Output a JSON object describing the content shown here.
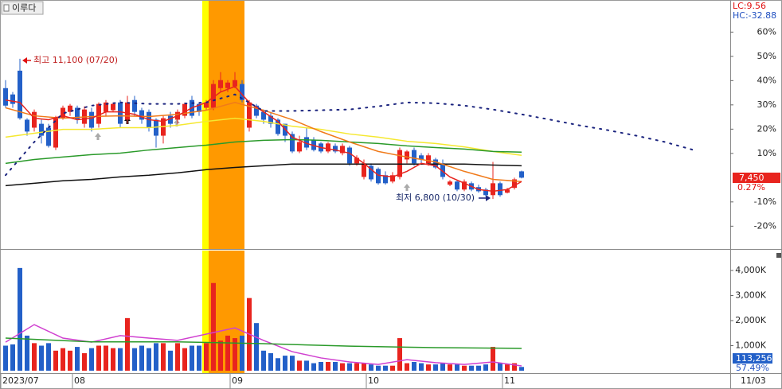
{
  "chart_data": {
    "type": "candlestick",
    "stock_name": "이루다",
    "lc_label": "LC:9.56",
    "hc_label": "HC:-32.88",
    "last_label": "7,450",
    "change_label": "0.27%",
    "high_note": "최고 11,100 (07/20)",
    "low_note": "최저 6,800 (10/30)",
    "current_date": "11/03",
    "up_color": "#e8241e",
    "down_color": "#2360c8",
    "categories": [
      "2023/07",
      null,
      null,
      null,
      null,
      null,
      null,
      null,
      null,
      null,
      "08",
      null,
      null,
      null,
      null,
      null,
      null,
      null,
      null,
      null,
      null,
      null,
      null,
      null,
      null,
      null,
      null,
      null,
      null,
      null,
      null,
      null,
      "09",
      null,
      null,
      null,
      null,
      null,
      null,
      null,
      null,
      null,
      null,
      null,
      null,
      null,
      null,
      null,
      null,
      null,
      null,
      "10",
      null,
      null,
      null,
      null,
      null,
      null,
      null,
      null,
      null,
      null,
      null,
      null,
      null,
      null,
      null,
      null,
      null,
      null,
      "11",
      null,
      null
    ],
    "open": [
      36.9,
      34.3,
      44.1,
      23.9,
      20.6,
      22.2,
      20.6,
      12.4,
      24.5,
      27.1,
      28.8,
      22.2,
      27.1,
      22.2,
      27.1,
      27.8,
      31.0,
      23.9,
      32.0,
      27.8,
      27.1,
      23.9,
      17.3,
      25.5,
      23.9,
      25.5,
      32.0,
      30.4,
      28.8,
      28.8,
      36.9,
      36.9,
      37.6,
      38.6,
      20.6,
      29.7,
      27.1,
      25.5,
      23.9,
      22.2,
      18.0,
      10.8,
      16.7,
      15.7,
      14.1,
      10.8,
      13.1,
      10.1,
      12.4,
      5.9,
      0.3,
      4.9,
      3.6,
      1.0,
      -1.6,
      0.3,
      7.5,
      11.4,
      9.2,
      5.9,
      7.5,
      5.9,
      -2.9,
      -1.6,
      -4.9,
      -2.3,
      -3.9,
      -4.9,
      -7.2,
      -2.3,
      -6.2,
      -4.2,
      2.6
    ],
    "high": [
      40.2,
      35.3,
      49.0,
      24.5,
      28.1,
      23.9,
      22.2,
      25.5,
      29.7,
      30.4,
      29.7,
      29.4,
      28.8,
      31.0,
      32.0,
      31.0,
      32.0,
      33.7,
      33.7,
      28.8,
      28.1,
      24.5,
      25.5,
      27.1,
      28.1,
      31.0,
      33.7,
      31.0,
      32.0,
      40.2,
      43.5,
      40.2,
      43.5,
      40.2,
      32.0,
      30.4,
      28.1,
      27.1,
      24.5,
      22.2,
      19.0,
      17.3,
      20.6,
      16.7,
      14.7,
      14.7,
      14.1,
      14.1,
      13.1,
      9.2,
      7.5,
      5.9,
      4.2,
      2.6,
      2.3,
      12.4,
      11.4,
      12.4,
      10.1,
      10.1,
      8.2,
      7.5,
      -1.0,
      -1.0,
      -0.7,
      -1.6,
      -2.9,
      -4.2,
      6.5,
      -1.6,
      -4.2,
      0.0,
      2.9
    ],
    "low": [
      28.8,
      28.8,
      23.9,
      17.3,
      19.0,
      14.1,
      12.4,
      11.4,
      23.9,
      25.5,
      22.2,
      20.6,
      19.0,
      20.6,
      25.5,
      27.1,
      20.6,
      22.2,
      25.5,
      22.2,
      19.0,
      12.4,
      14.1,
      20.6,
      22.2,
      24.5,
      24.5,
      25.5,
      27.8,
      27.8,
      35.3,
      35.3,
      36.9,
      31.0,
      19.0,
      24.5,
      22.2,
      20.6,
      17.3,
      14.7,
      10.1,
      10.1,
      11.4,
      10.8,
      10.1,
      10.1,
      10.1,
      9.2,
      4.9,
      4.9,
      -0.7,
      -1.6,
      -2.9,
      -2.9,
      -2.3,
      -0.7,
      5.9,
      4.9,
      5.9,
      4.9,
      3.6,
      -0.7,
      -3.5,
      -5.6,
      -5.6,
      -5.6,
      -6.2,
      -7.9,
      -8.8,
      -7.9,
      -6.5,
      -4.9,
      -0.3
    ],
    "close": [
      29.7,
      30.4,
      24.5,
      19.0,
      27.1,
      17.3,
      13.1,
      24.5,
      28.8,
      29.7,
      23.9,
      28.1,
      20.6,
      30.4,
      31.0,
      30.4,
      22.2,
      31.0,
      27.1,
      23.9,
      20.6,
      17.3,
      24.5,
      22.2,
      27.1,
      30.4,
      25.5,
      27.1,
      31.0,
      38.6,
      40.2,
      39.2,
      40.2,
      32.0,
      31.0,
      25.5,
      23.9,
      22.2,
      18.0,
      17.3,
      10.8,
      14.7,
      12.4,
      11.4,
      10.8,
      14.1,
      10.8,
      13.1,
      5.9,
      8.2,
      5.9,
      -0.7,
      -2.3,
      -2.3,
      1.0,
      11.4,
      10.8,
      5.9,
      7.5,
      9.2,
      4.2,
      0.3,
      -1.6,
      -4.9,
      -1.6,
      -4.9,
      -5.6,
      -7.2,
      -2.3,
      -7.2,
      -4.9,
      -0.7,
      0.0
    ],
    "ylim": [
      -29.4,
      72.9
    ],
    "yticks": [
      {
        "value": 60,
        "label": "60%"
      },
      {
        "value": 50,
        "label": "50%"
      },
      {
        "value": 40,
        "label": "40%"
      },
      {
        "value": 30,
        "label": "30%"
      },
      {
        "value": 20,
        "label": "20%"
      },
      {
        "value": 10,
        "label": "10%"
      },
      {
        "value": -10,
        "label": "-10%"
      },
      {
        "value": -20,
        "label": "-20%"
      }
    ],
    "lines": [
      {
        "color": "#f5e830",
        "dotted": false,
        "x": [
          0,
          4,
          8,
          12,
          16,
          20,
          24,
          28,
          32,
          36,
          40,
          44,
          48,
          52,
          56,
          60,
          64,
          68,
          72
        ],
        "values": [
          16.7,
          18.3,
          19.9,
          19.9,
          20.6,
          20.6,
          21.6,
          23.2,
          24.5,
          23.2,
          21.2,
          19.9,
          18.0,
          16.7,
          15.0,
          14.1,
          12.7,
          10.8,
          9.2
        ]
      },
      {
        "color": "#2a9a2a",
        "dotted": false,
        "x": [
          0,
          4,
          8,
          12,
          16,
          20,
          24,
          28,
          32,
          36,
          40,
          44,
          48,
          52,
          56,
          60,
          64,
          68,
          72
        ],
        "values": [
          5.9,
          7.5,
          8.5,
          9.5,
          10.1,
          11.4,
          12.4,
          13.4,
          14.7,
          15.4,
          15.7,
          15.4,
          14.7,
          14.1,
          13.1,
          12.4,
          11.8,
          10.8,
          10.5
        ]
      },
      {
        "color": "#111111",
        "dotted": false,
        "x": [
          0,
          4,
          8,
          12,
          16,
          20,
          24,
          28,
          32,
          36,
          40,
          44,
          48,
          52,
          56,
          60,
          64,
          68,
          72
        ],
        "values": [
          -3.3,
          -2.3,
          -1.3,
          -0.7,
          0.3,
          1.0,
          2.0,
          3.3,
          4.2,
          4.9,
          5.6,
          5.6,
          5.6,
          5.6,
          5.6,
          5.6,
          5.6,
          5.2,
          4.9
        ]
      },
      {
        "color": "#f07a1a",
        "dotted": false,
        "x": [
          0,
          4,
          8,
          12,
          16,
          20,
          24,
          28,
          32,
          36,
          40,
          44,
          48,
          52,
          56,
          60,
          64,
          68,
          72
        ],
        "values": [
          28.8,
          25.5,
          24.5,
          25.2,
          25.5,
          25.2,
          26.1,
          27.8,
          31.0,
          27.8,
          23.9,
          19.0,
          14.7,
          10.8,
          8.5,
          6.5,
          2.6,
          -0.7,
          -1.6
        ]
      },
      {
        "color": "#e8241e",
        "dotted": false,
        "x": [
          0,
          2,
          4,
          6,
          8,
          10,
          12,
          14,
          16,
          18,
          20,
          22,
          24,
          26,
          28,
          30,
          32,
          34,
          36,
          38,
          40,
          42,
          44,
          46,
          48,
          50,
          52,
          54,
          56,
          58,
          60,
          62,
          64,
          66,
          68,
          70,
          72
        ],
        "values": [
          32.0,
          31.0,
          24.5,
          23.9,
          25.5,
          23.9,
          24.5,
          27.1,
          27.1,
          26.1,
          23.9,
          23.2,
          25.5,
          28.8,
          31.0,
          35.3,
          37.6,
          31.0,
          27.1,
          23.2,
          16.7,
          14.1,
          12.4,
          11.4,
          10.1,
          5.9,
          1.0,
          0.3,
          2.6,
          5.9,
          4.9,
          0.3,
          -2.3,
          -4.9,
          -5.6,
          -4.9,
          -1.6
        ]
      },
      {
        "color": "#1a237e",
        "dotted": true,
        "x": [
          0,
          4,
          8,
          12,
          16,
          20,
          24,
          28,
          32,
          36,
          40,
          44,
          48,
          52,
          56,
          60,
          64,
          68,
          72,
          76,
          80,
          84,
          88,
          92,
          96
        ],
        "values": [
          1.0,
          14.7,
          26.5,
          29.7,
          31.0,
          30.4,
          30.4,
          31.0,
          34.3,
          27.5,
          27.5,
          27.8,
          28.1,
          29.4,
          31.0,
          30.7,
          29.7,
          28.1,
          26.1,
          23.9,
          21.6,
          19.6,
          17.3,
          14.7,
          11.4
        ]
      }
    ],
    "volume": {
      "values": [
        1000,
        1050,
        4100,
        1400,
        1100,
        1000,
        1100,
        800,
        900,
        800,
        950,
        700,
        900,
        1000,
        1000,
        900,
        900,
        2100,
        900,
        1000,
        900,
        1100,
        1100,
        800,
        1100,
        900,
        1000,
        1000,
        1100,
        3500,
        1200,
        1400,
        1300,
        1400,
        2900,
        1900,
        800,
        700,
        500,
        600,
        600,
        400,
        400,
        300,
        350,
        350,
        350,
        300,
        300,
        300,
        300,
        250,
        200,
        200,
        200,
        1300,
        300,
        350,
        300,
        250,
        250,
        300,
        250,
        250,
        200,
        200,
        200,
        250,
        950,
        300,
        250,
        300,
        150
      ],
      "ylim": [
        0,
        4794
      ],
      "yticks": [
        {
          "value": 4000,
          "label": "4,000K"
        },
        {
          "value": 3000,
          "label": "3,000K"
        },
        {
          "value": 2000,
          "label": "2,000K"
        },
        {
          "value": 1000,
          "label": "1,000K"
        }
      ],
      "last_label": "113,256",
      "ratio_label": "57.49%",
      "lines": [
        {
          "color": "#d040d0",
          "x": [
            0,
            4,
            8,
            12,
            16,
            20,
            24,
            28,
            32,
            36,
            40,
            44,
            48,
            52,
            56,
            60,
            64,
            68,
            72
          ],
          "values": [
            1140,
            1840,
            1300,
            1140,
            1400,
            1300,
            1210,
            1460,
            1710,
            1210,
            760,
            510,
            350,
            250,
            440,
            320,
            250,
            350,
            190
          ]
        },
        {
          "color": "#2a9a2a",
          "x": [
            0,
            12,
            24,
            36,
            48,
            60,
            72
          ],
          "values": [
            1300,
            1150,
            1150,
            1080,
            980,
            920,
            890
          ]
        }
      ]
    }
  }
}
